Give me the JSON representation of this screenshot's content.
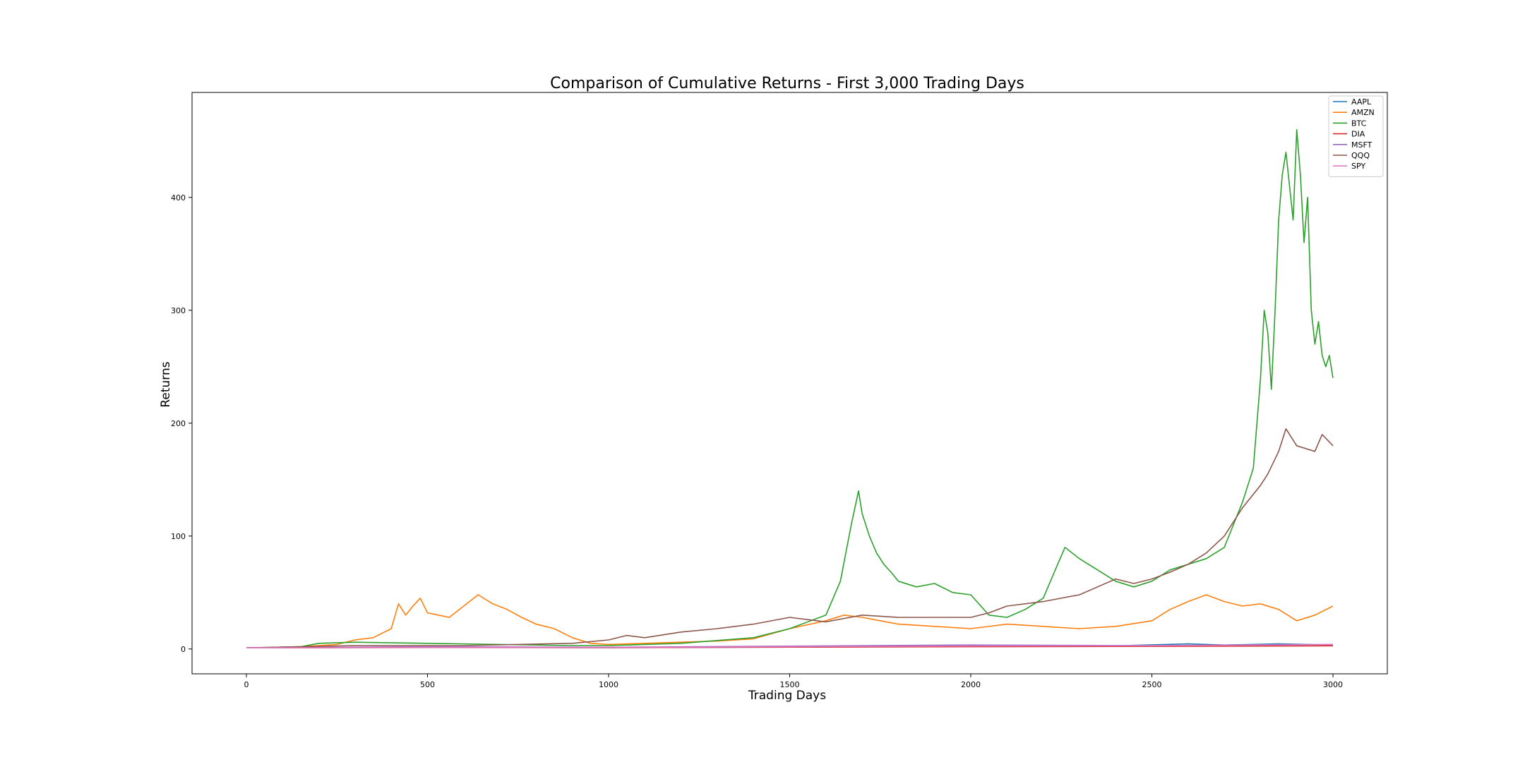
{
  "chart_data": {
    "type": "line",
    "title": "Comparison of Cumulative Returns - First 3,000 Trading Days",
    "xlabel": "Trading Days",
    "ylabel": "Returns",
    "xlim": [
      -150,
      3150
    ],
    "ylim": [
      -22,
      493
    ],
    "xticks": [
      0,
      500,
      1000,
      1500,
      2000,
      2500,
      3000
    ],
    "yticks": [
      0,
      100,
      200,
      300,
      400
    ],
    "grid": false,
    "legend_position": "top-right",
    "series": [
      {
        "name": "AAPL",
        "color": "#1f77b4",
        "x": [
          0,
          500,
          1000,
          1500,
          2000,
          2400,
          2600,
          2700,
          2850,
          3000
        ],
        "y": [
          1,
          1.5,
          1.2,
          1.6,
          2.5,
          2.8,
          4.5,
          3.5,
          4.5,
          3.5
        ]
      },
      {
        "name": "AMZN",
        "color": "#ff7f0e",
        "x": [
          0,
          150,
          250,
          300,
          350,
          400,
          420,
          440,
          460,
          480,
          500,
          530,
          560,
          600,
          640,
          680,
          720,
          760,
          800,
          850,
          900,
          950,
          1000,
          1100,
          1200,
          1300,
          1400,
          1500,
          1600,
          1650,
          1700,
          1750,
          1800,
          1900,
          2000,
          2100,
          2200,
          2300,
          2400,
          2500,
          2550,
          2600,
          2650,
          2700,
          2750,
          2800,
          2850,
          2900,
          2950,
          3000
        ],
        "y": [
          1,
          2,
          4,
          8,
          10,
          18,
          40,
          30,
          38,
          45,
          32,
          30,
          28,
          38,
          48,
          40,
          35,
          28,
          22,
          18,
          10,
          5,
          4,
          5,
          6,
          7,
          9,
          18,
          25,
          30,
          28,
          25,
          22,
          20,
          18,
          22,
          20,
          18,
          20,
          25,
          35,
          42,
          48,
          42,
          38,
          40,
          35,
          25,
          30,
          38
        ]
      },
      {
        "name": "BTC",
        "color": "#2ca02c",
        "x": [
          0,
          150,
          200,
          300,
          500,
          700,
          900,
          1000,
          1200,
          1400,
          1500,
          1600,
          1640,
          1670,
          1690,
          1700,
          1720,
          1740,
          1760,
          1780,
          1800,
          1850,
          1900,
          1950,
          2000,
          2050,
          2100,
          2150,
          2200,
          2240,
          2260,
          2300,
          2350,
          2400,
          2450,
          2500,
          2550,
          2600,
          2650,
          2700,
          2750,
          2780,
          2800,
          2810,
          2820,
          2830,
          2840,
          2850,
          2860,
          2870,
          2880,
          2890,
          2900,
          2910,
          2920,
          2930,
          2940,
          2950,
          2960,
          2970,
          2980,
          2990,
          3000
        ],
        "y": [
          1,
          2,
          5,
          6,
          5,
          4,
          3,
          3,
          5,
          10,
          18,
          30,
          60,
          110,
          140,
          120,
          100,
          85,
          75,
          68,
          60,
          55,
          58,
          50,
          48,
          30,
          28,
          35,
          45,
          75,
          90,
          80,
          70,
          60,
          55,
          60,
          70,
          75,
          80,
          90,
          130,
          160,
          240,
          300,
          280,
          230,
          300,
          380,
          420,
          440,
          410,
          380,
          460,
          420,
          360,
          400,
          300,
          270,
          290,
          260,
          250,
          260,
          240
        ]
      },
      {
        "name": "DIA",
        "color": "#d62728",
        "x": [
          0,
          500,
          1000,
          1500,
          2000,
          2500,
          3000
        ],
        "y": [
          1,
          1.3,
          1.2,
          1.6,
          2.0,
          2.3,
          2.8
        ]
      },
      {
        "name": "MSFT",
        "color": "#9467bd",
        "x": [
          0,
          500,
          1000,
          1500,
          2000,
          2500,
          3000
        ],
        "y": [
          1,
          2.0,
          1.5,
          2.5,
          3.5,
          3.0,
          4.0
        ]
      },
      {
        "name": "QQQ",
        "color": "#8c564b",
        "x": [
          0,
          300,
          600,
          900,
          1000,
          1050,
          1100,
          1200,
          1300,
          1400,
          1500,
          1550,
          1600,
          1700,
          1800,
          1900,
          2000,
          2050,
          2100,
          2200,
          2300,
          2350,
          2400,
          2450,
          2500,
          2550,
          2600,
          2650,
          2700,
          2750,
          2800,
          2820,
          2850,
          2870,
          2900,
          2950,
          2970,
          3000
        ],
        "y": [
          1,
          3,
          3,
          5,
          8,
          12,
          10,
          15,
          18,
          22,
          28,
          26,
          24,
          30,
          28,
          28,
          28,
          32,
          38,
          42,
          48,
          55,
          62,
          58,
          62,
          68,
          75,
          85,
          100,
          125,
          145,
          155,
          175,
          195,
          180,
          175,
          190,
          180
        ]
      },
      {
        "name": "SPY",
        "color": "#e377c2",
        "x": [
          0,
          500,
          1000,
          1500,
          2000,
          2500,
          3000
        ],
        "y": [
          1,
          1.5,
          1.4,
          2.0,
          2.6,
          2.9,
          3.8
        ]
      }
    ]
  }
}
